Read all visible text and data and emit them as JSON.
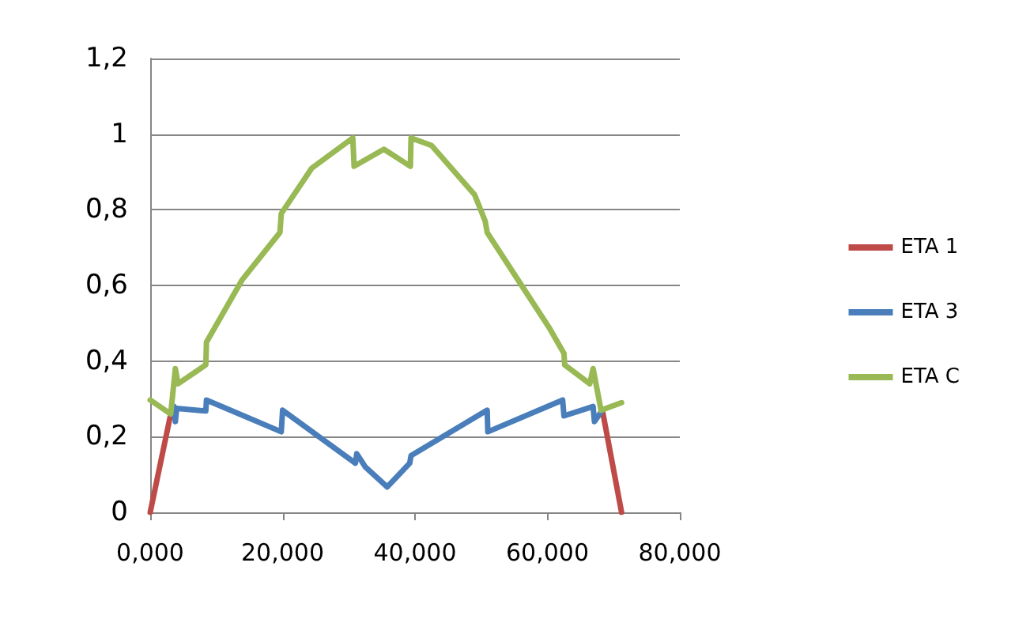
{
  "chart_data": {
    "type": "line",
    "legend": "right",
    "grid": "y",
    "marker": "none",
    "line_style": "solid",
    "xlim": [
      0,
      80
    ],
    "xticks": [
      {
        "value": 0,
        "label": "0,000"
      },
      {
        "value": 20,
        "label": "20,000"
      },
      {
        "value": 40,
        "label": "40,000"
      },
      {
        "value": 60,
        "label": "60,000"
      },
      {
        "value": 80,
        "label": "80,000"
      }
    ],
    "ylim": [
      0,
      1.2
    ],
    "yticks": [
      0,
      {
        "value": 0.2,
        "label": "0,2"
      },
      {
        "value": 0.4,
        "label": "0,4"
      },
      {
        "value": 0.6,
        "label": "0,6"
      },
      {
        "value": 0.8,
        "label": "0,8"
      },
      1,
      {
        "value": 1.2,
        "label": "1,2"
      }
    ],
    "series": [
      {
        "name": "ETA 1",
        "color": "#be4b48",
        "x": [
          0,
          3.1,
          35.8,
          68.3,
          71.2
        ],
        "values": [
          0,
          0.26,
          null,
          0.27,
          0
        ]
      },
      {
        "name": "ETA 3",
        "color": "#4a7ebb",
        "x": [
          3.1,
          3.6,
          3.8,
          4.0,
          8.4,
          8.5,
          19.8,
          20.0,
          31.0,
          31.2,
          32.5,
          35.8,
          39.2,
          39.4,
          50.9,
          51.0,
          62.3,
          62.5,
          66.9,
          67.1,
          68.3
        ],
        "values": [
          0.26,
          0.28,
          0.24,
          0.275,
          0.268,
          0.297,
          0.213,
          0.27,
          0.13,
          0.155,
          0.12,
          0.067,
          0.13,
          0.15,
          0.27,
          0.213,
          0.297,
          0.255,
          0.28,
          0.24,
          0.27
        ]
      },
      {
        "name": "ETA C",
        "color": "#98b954",
        "x": [
          0,
          3.1,
          3.8,
          4.2,
          8.4,
          8.5,
          13.9,
          19.6,
          19.8,
          24.4,
          30.6,
          30.8,
          35.3,
          39.3,
          39.4,
          42.5,
          49.0,
          50.6,
          50.9,
          56.1,
          60.2,
          62.5,
          62.6,
          66.4,
          66.9,
          68.1,
          71.2
        ],
        "values": [
          0.297,
          0.26,
          0.38,
          0.34,
          0.39,
          0.45,
          0.615,
          0.74,
          0.79,
          0.91,
          0.99,
          0.915,
          0.96,
          0.915,
          0.99,
          0.97,
          0.84,
          0.77,
          0.74,
          0.6,
          0.49,
          0.42,
          0.39,
          0.34,
          0.38,
          0.27,
          0.29
        ]
      }
    ]
  }
}
